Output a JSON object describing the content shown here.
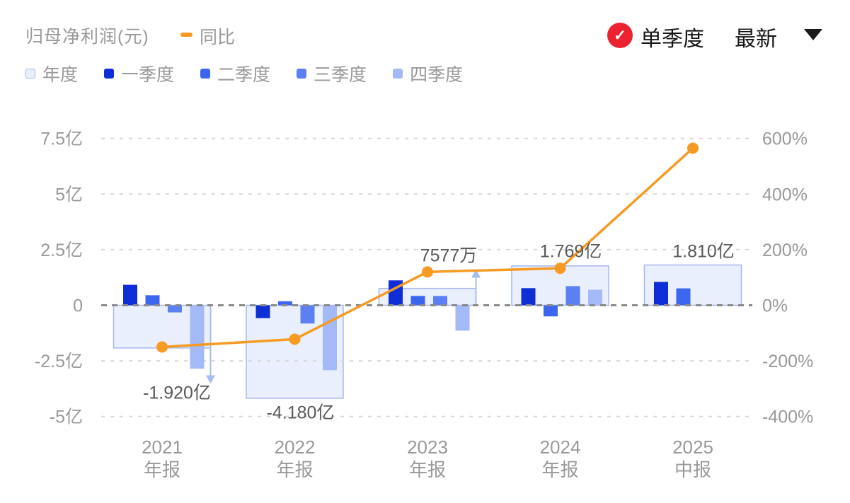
{
  "header": {
    "title": "归母净利润(元)",
    "yoy_legend": "同比",
    "quarter_toggle": {
      "label": "单季度",
      "checked": true,
      "check_icon": "✓"
    },
    "report_select": {
      "value": "最新"
    },
    "bar_legend": [
      {
        "key": "annual",
        "label": "年度"
      },
      {
        "key": "q1",
        "label": "一季度"
      },
      {
        "key": "q2",
        "label": "二季度"
      },
      {
        "key": "q3",
        "label": "三季度"
      },
      {
        "key": "q4",
        "label": "四季度"
      }
    ]
  },
  "colors": {
    "annual_fill": "#e9effc",
    "annual_border": "#a7b8ef",
    "q1": "#0f2fd6",
    "q2": "#3d66f0",
    "q3": "#5c80f2",
    "q4": "#a3b9f8",
    "yoy_line": "#f59a23",
    "badge_red": "#ec2230",
    "grid": "#d8d8d8",
    "zero_line": "#8a8a8a",
    "axis_text": "#999999",
    "annotation_text": "#595959",
    "arrow": "#a6bdf4"
  },
  "chart_data": {
    "type": "bar+line",
    "title": "归母净利润(元)",
    "categories": [
      {
        "year": "2021",
        "period": "年报"
      },
      {
        "year": "2022",
        "period": "年报"
      },
      {
        "year": "2023",
        "period": "年报"
      },
      {
        "year": "2024",
        "period": "年报"
      },
      {
        "year": "2025",
        "period": "中报"
      }
    ],
    "left_axis": {
      "unit": "亿",
      "ticks": [
        "7.5亿",
        "5亿",
        "2.5亿",
        "0",
        "-2.5亿",
        "-5亿"
      ],
      "values": [
        7.5,
        5,
        2.5,
        0,
        -2.5,
        -5
      ],
      "range": [
        -5,
        7.5
      ]
    },
    "right_axis": {
      "unit": "%",
      "ticks": [
        "600%",
        "400%",
        "200%",
        "0%",
        "-200%",
        "-400%"
      ],
      "values": [
        600,
        400,
        200,
        0,
        -200,
        -400
      ],
      "range": [
        -400,
        600
      ]
    },
    "grid": "dashed",
    "annual_series_name": "年度",
    "annual_values_yi": [
      -1.92,
      -4.18,
      0.7577,
      1.769,
      1.81
    ],
    "annual_labels": [
      "-1.920亿",
      "-4.180亿",
      "7577万",
      "1.769亿",
      "1.810亿"
    ],
    "series": [
      {
        "key": "q1",
        "name": "一季度",
        "values_yi": [
          0.92,
          -0.58,
          1.12,
          0.77,
          1.05
        ]
      },
      {
        "key": "q2",
        "name": "二季度",
        "values_yi": [
          0.45,
          0.18,
          0.42,
          -0.5,
          0.76
        ]
      },
      {
        "key": "q3",
        "name": "三季度",
        "values_yi": [
          -0.32,
          -0.82,
          0.42,
          0.86,
          null
        ]
      },
      {
        "key": "q4",
        "name": "四季度",
        "values_yi": [
          -2.85,
          -2.92,
          -1.14,
          0.7,
          null
        ]
      }
    ],
    "yoy_line": {
      "name": "同比",
      "values_percent_est": [
        -150,
        -122,
        120,
        133,
        565
      ]
    },
    "arrows": [
      {
        "index": 0,
        "dir": "down"
      },
      {
        "index": 2,
        "dir": "up"
      }
    ]
  }
}
